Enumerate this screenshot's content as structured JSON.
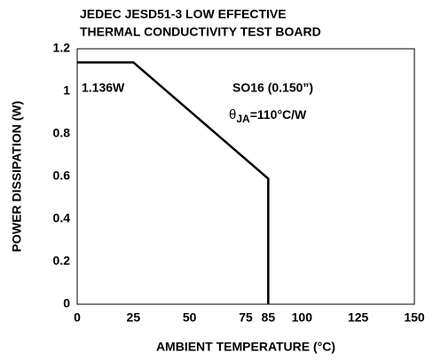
{
  "chart_data": {
    "type": "line",
    "title": [
      "JEDEC JESD51-3 LOW EFFECTIVE",
      "THERMAL CONDUCTIVITY TEST BOARD"
    ],
    "x_label": "AMBIENT TEMPERATURE (°C)",
    "y_label": "POWER DISSIPATION (W)",
    "series": [
      {
        "name": "SO16",
        "color": "#000000",
        "x": [
          0,
          25,
          85,
          85
        ],
        "values": [
          1.136,
          1.136,
          0.59,
          0
        ]
      }
    ],
    "xlim": [
      0,
      150
    ],
    "xticks": [
      0,
      25,
      50,
      75,
      85,
      100,
      125,
      150
    ],
    "ylim": [
      0,
      1.2
    ],
    "yticks": [
      0,
      0.2,
      0.4,
      0.6,
      0.8,
      1,
      1.2
    ],
    "grid": false,
    "annotations": [
      {
        "text": "1.136W"
      },
      {
        "text": "SO16 (0.150”)"
      },
      {
        "parts": [
          "θ",
          "JA",
          "=110°C/W"
        ]
      }
    ]
  }
}
